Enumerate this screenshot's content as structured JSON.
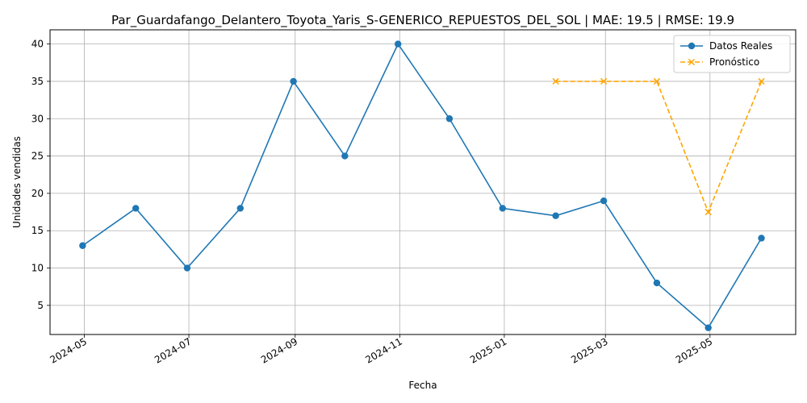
{
  "chart_data": {
    "type": "line",
    "title": "Par_Guardafango_Delantero_Toyota_Yaris_S-GENERICO_REPUESTOS_DEL_SOL | MAE: 19.5 | RMSE: 19.9",
    "xlabel": "Fecha",
    "ylabel": "Unidades vendidas",
    "ylim": [
      1.1,
      41.9
    ],
    "xlim": [
      "2024-04-11",
      "2025-06-20"
    ],
    "x_ticks": [
      "2024-05",
      "2024-07",
      "2024-09",
      "2024-11",
      "2025-01",
      "2025-03",
      "2025-05"
    ],
    "y_ticks": [
      5,
      10,
      15,
      20,
      25,
      30,
      35,
      40
    ],
    "grid": true,
    "legend_position": "upper right",
    "series": [
      {
        "name": "Datos Reales",
        "color": "#1f77b4",
        "style": "solid",
        "marker": "circle",
        "x": [
          "2024-04-30",
          "2024-05-31",
          "2024-06-30",
          "2024-07-31",
          "2024-08-31",
          "2024-09-30",
          "2024-10-31",
          "2024-11-30",
          "2024-12-31",
          "2025-01-31",
          "2025-02-28",
          "2025-03-31",
          "2025-04-30",
          "2025-05-31"
        ],
        "y": [
          13,
          18,
          10,
          18,
          35,
          25,
          40,
          30,
          18,
          17,
          19,
          8,
          2,
          14
        ]
      },
      {
        "name": "Pronóstico",
        "color": "#ffa500",
        "style": "dashed",
        "marker": "x",
        "x": [
          "2025-01-31",
          "2025-02-28",
          "2025-03-31",
          "2025-04-30",
          "2025-05-31"
        ],
        "y": [
          35,
          35,
          35,
          17.5,
          35
        ]
      }
    ]
  }
}
